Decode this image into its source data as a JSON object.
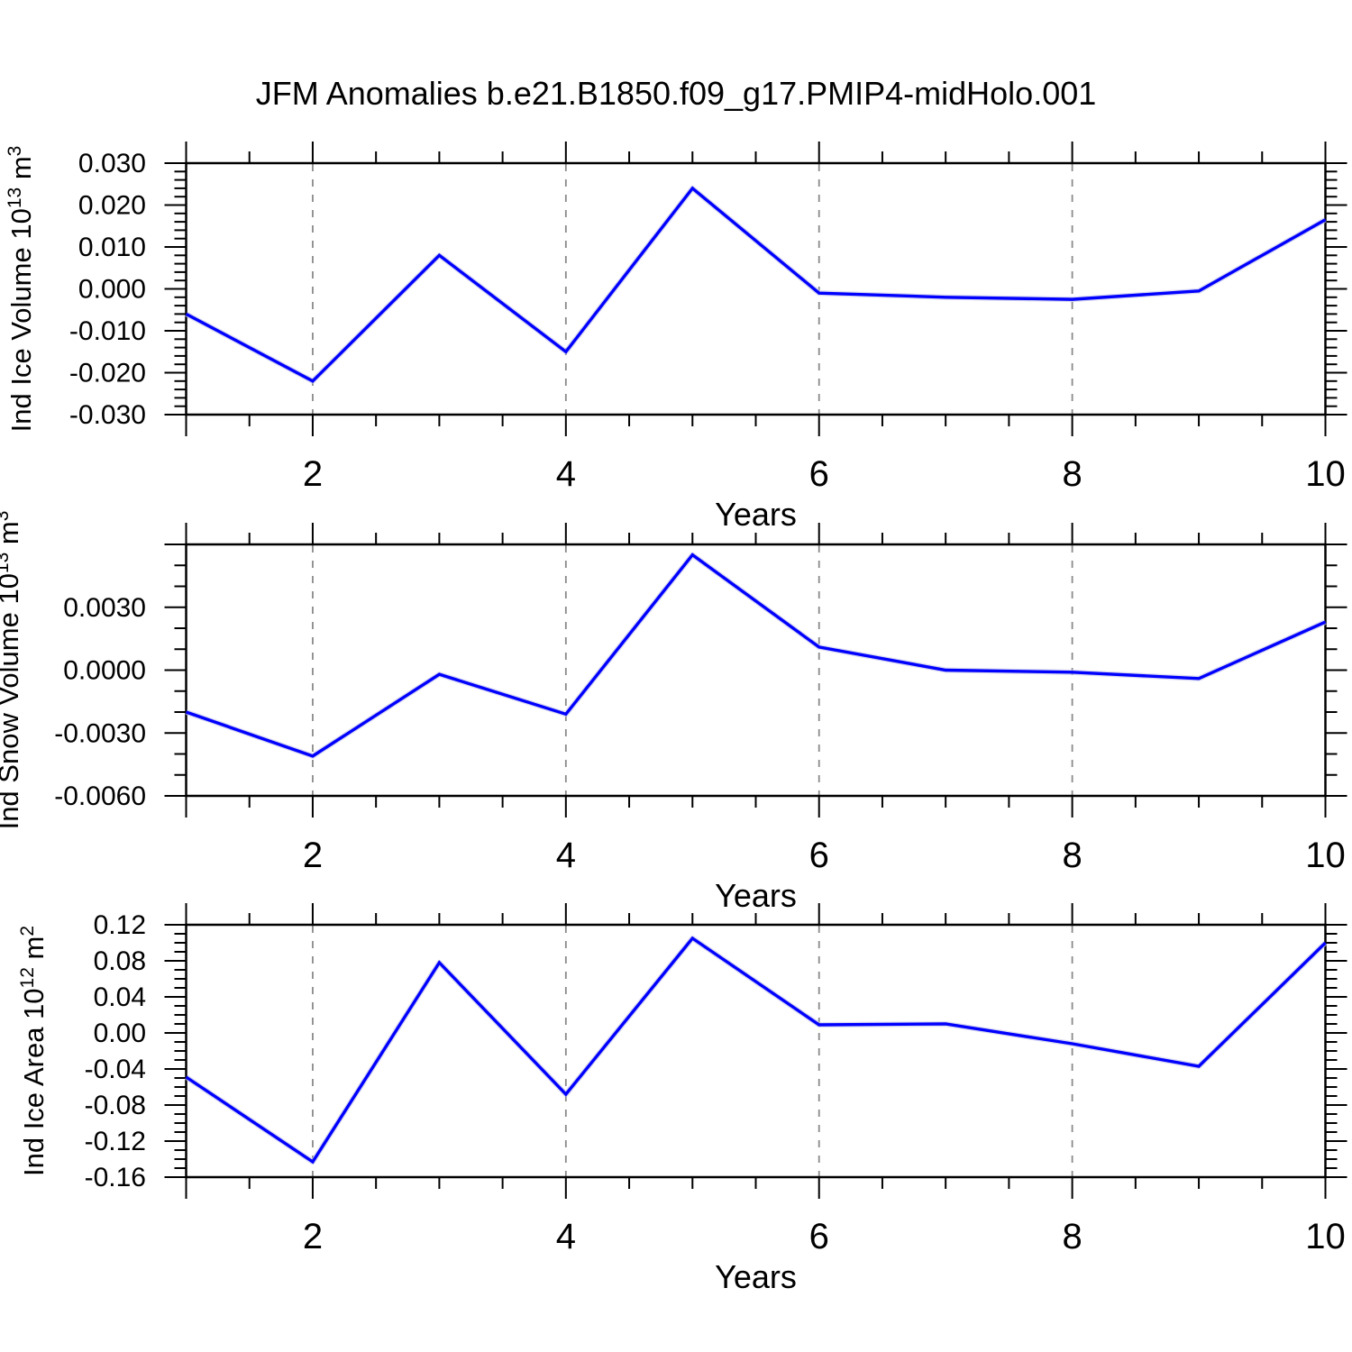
{
  "title": "JFM Anomalies b.e21.B1850.f09_g17.PMIP4-midHolo.001",
  "colors": {
    "background": "#ffffff",
    "line": "#0000ff",
    "line_halo": "#c6c6ea",
    "grid": "#8a8a8a",
    "axis": "#000000",
    "text": "#000000"
  },
  "chart_data": [
    {
      "type": "line",
      "ylabel": "Ind Ice Volume 10^13 m^3",
      "ylabel_parts": [
        {
          "text": "Ind Ice Volume 10",
          "sup": false
        },
        {
          "text": "13",
          "sup": true
        },
        {
          "text": " m",
          "sup": false
        },
        {
          "text": "3",
          "sup": true
        }
      ],
      "xlabel": "Years",
      "x": [
        1,
        2,
        3,
        4,
        5,
        6,
        7,
        8,
        9,
        10
      ],
      "values": [
        -0.006,
        -0.022,
        0.008,
        -0.015,
        0.024,
        -0.001,
        -0.002,
        -0.0025,
        -0.0005,
        0.0165
      ],
      "xlim": [
        1,
        10
      ],
      "ylim": [
        -0.03,
        0.03
      ],
      "yticks": [
        0.03,
        0.02,
        0.01,
        0.0,
        -0.01,
        -0.02,
        -0.03
      ],
      "ytick_labels": [
        "0.030",
        "0.020",
        "0.010",
        "0.000",
        "-0.010",
        "-0.020",
        "-0.030"
      ],
      "yminor_step": 0.002,
      "xticks_labeled": [
        2,
        4,
        6,
        8,
        10
      ],
      "xtick_label_texts": [
        "2",
        "4",
        "6",
        "8",
        "10"
      ],
      "xticks_major": [
        1,
        2,
        4,
        6,
        8,
        10
      ],
      "xminor_step": 0.5,
      "grid_x": [
        2,
        4,
        6,
        8
      ],
      "grid": "vertical-dashed",
      "legend": "none"
    },
    {
      "type": "line",
      "ylabel": "Ind Snow Volume 10^13 m^3",
      "ylabel_parts": [
        {
          "text": "Ind Snow Volume 10",
          "sup": false
        },
        {
          "text": "13",
          "sup": true
        },
        {
          "text": " m",
          "sup": false
        },
        {
          "text": "3",
          "sup": true
        }
      ],
      "xlabel": "Years",
      "x": [
        1,
        2,
        3,
        4,
        5,
        6,
        7,
        8,
        9,
        10
      ],
      "values": [
        -0.002,
        -0.0041,
        -0.0002,
        -0.0021,
        0.0055,
        0.0011,
        0.0,
        -0.0001,
        -0.0004,
        0.0023
      ],
      "xlim": [
        1,
        10
      ],
      "ylim": [
        -0.006,
        0.006
      ],
      "yticks": [
        0.006,
        0.003,
        0.0,
        -0.003,
        -0.006
      ],
      "ytick_labels": [
        null,
        "0.0030",
        "0.0000",
        "-0.0030",
        "-0.0060"
      ],
      "yminor_step": 0.001,
      "xticks_labeled": [
        2,
        4,
        6,
        8,
        10
      ],
      "xtick_label_texts": [
        "2",
        "4",
        "6",
        "8",
        "10"
      ],
      "xticks_major": [
        1,
        2,
        4,
        6,
        8,
        10
      ],
      "xminor_step": 0.5,
      "grid_x": [
        2,
        4,
        6,
        8
      ],
      "grid": "vertical-dashed",
      "legend": "none"
    },
    {
      "type": "line",
      "ylabel": "Ind Ice Area 10^12 m^2",
      "ylabel_parts": [
        {
          "text": "Ind Ice Area 10",
          "sup": false
        },
        {
          "text": "12",
          "sup": true
        },
        {
          "text": " m",
          "sup": false
        },
        {
          "text": "2",
          "sup": true
        }
      ],
      "xlabel": "Years",
      "x": [
        1,
        2,
        3,
        4,
        5,
        6,
        7,
        8,
        9,
        10
      ],
      "values": [
        -0.049,
        -0.143,
        0.078,
        -0.068,
        0.105,
        0.009,
        0.01,
        -0.012,
        -0.037,
        0.1
      ],
      "xlim": [
        1,
        10
      ],
      "ylim": [
        -0.16,
        0.12
      ],
      "yticks": [
        0.12,
        0.08,
        0.04,
        0.0,
        -0.04,
        -0.08,
        -0.12,
        -0.16
      ],
      "ytick_labels": [
        "0.12",
        "0.08",
        "0.04",
        "0.00",
        "-0.04",
        "-0.08",
        "-0.12",
        "-0.16"
      ],
      "yminor_step": 0.01,
      "xticks_labeled": [
        2,
        4,
        6,
        8,
        10
      ],
      "xtick_label_texts": [
        "2",
        "4",
        "6",
        "8",
        "10"
      ],
      "xticks_major": [
        1,
        2,
        4,
        6,
        8,
        10
      ],
      "xminor_step": 0.5,
      "grid_x": [
        2,
        4,
        6,
        8
      ],
      "grid": "vertical-dashed",
      "legend": "none"
    }
  ]
}
